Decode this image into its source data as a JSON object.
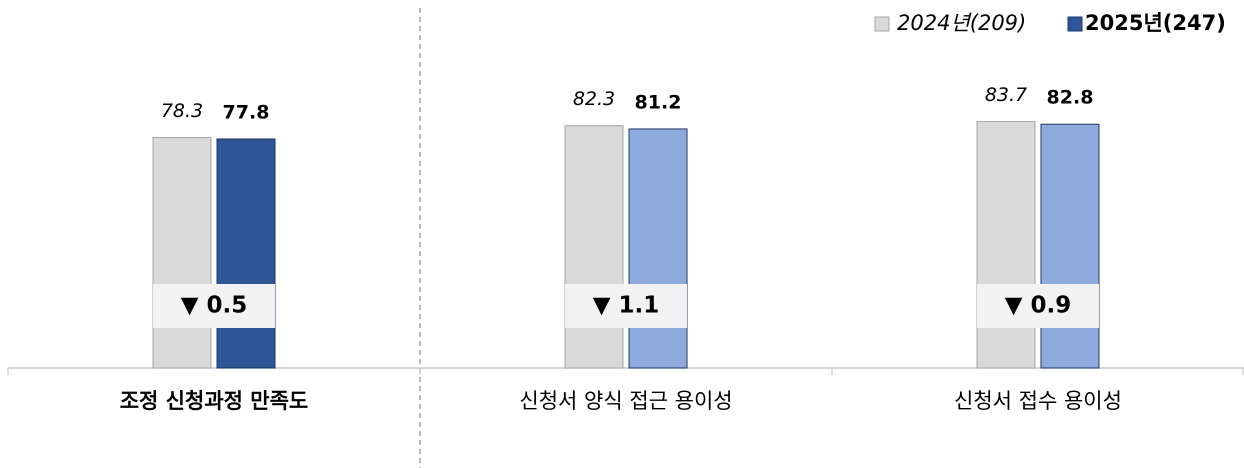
{
  "chart_data": {
    "type": "bar",
    "categories": [
      "조정 신청과정 만족도",
      "신청서 양식 접근 용이성",
      "신청서 접수 용이성"
    ],
    "bold_categories": [
      true,
      false,
      false
    ],
    "series": [
      {
        "name": "2024년(209)",
        "color": "#d9d9d9",
        "values": [
          78.3,
          82.3,
          83.7
        ]
      },
      {
        "name": "2025년(247)",
        "color": "#2f5597",
        "colors": [
          "#2f5597",
          "#8faadc",
          "#8faadc"
        ],
        "values": [
          77.8,
          81.2,
          82.8
        ]
      }
    ],
    "annotations": [
      "▼ 0.5",
      "▼ 1.1",
      "▼ 0.9"
    ],
    "annotation_color": "#c00000",
    "ylim": [
      0,
      125
    ],
    "legend": "top-right"
  }
}
